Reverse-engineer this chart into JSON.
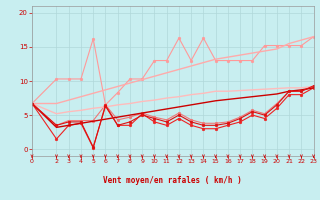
{
  "bg_color": "#c8eef0",
  "grid_color": "#b0d8da",
  "xlabel": "Vent moyen/en rafales ( km/h )",
  "xlabel_color": "#cc0000",
  "tick_color": "#cc0000",
  "xlim": [
    0,
    23
  ],
  "ylim": [
    -1,
    21
  ],
  "yticks": [
    0,
    5,
    10,
    15,
    20
  ],
  "xticks": [
    0,
    2,
    3,
    4,
    5,
    6,
    7,
    8,
    9,
    10,
    11,
    12,
    13,
    14,
    15,
    16,
    17,
    18,
    19,
    20,
    21,
    22,
    23
  ],
  "lines": [
    {
      "x": [
        0,
        2,
        3,
        4,
        5,
        6,
        7,
        8,
        9,
        10,
        11,
        12,
        13,
        14,
        15,
        16,
        17,
        18,
        19,
        20,
        21,
        22,
        23
      ],
      "y": [
        6.7,
        10.3,
        10.3,
        10.3,
        16.2,
        6.5,
        8.3,
        10.3,
        10.3,
        13.0,
        13.0,
        16.3,
        13.0,
        16.3,
        13.0,
        13.0,
        13.0,
        13.0,
        15.2,
        15.2,
        15.2,
        15.2,
        16.5
      ],
      "color": "#ff9999",
      "linewidth": 0.8,
      "marker": "o",
      "markersize": 2.0
    },
    {
      "x": [
        0,
        2,
        3,
        4,
        5,
        6,
        7,
        8,
        9,
        10,
        11,
        12,
        13,
        14,
        15,
        16,
        17,
        18,
        19,
        20,
        21,
        22,
        23
      ],
      "y": [
        6.7,
        6.7,
        7.2,
        7.7,
        8.2,
        8.7,
        9.2,
        9.7,
        10.2,
        10.7,
        11.2,
        11.7,
        12.2,
        12.7,
        13.2,
        13.5,
        13.8,
        14.1,
        14.4,
        14.7,
        15.5,
        16.0,
        16.5
      ],
      "color": "#ffaaaa",
      "linewidth": 1.0,
      "marker": null,
      "markersize": 0
    },
    {
      "x": [
        0,
        2,
        3,
        4,
        5,
        6,
        7,
        8,
        9,
        10,
        11,
        12,
        13,
        14,
        15,
        16,
        17,
        18,
        19,
        20,
        21,
        22,
        23
      ],
      "y": [
        6.7,
        3.5,
        4.2,
        4.2,
        4.2,
        6.5,
        4.3,
        4.7,
        5.3,
        4.7,
        4.3,
        5.3,
        4.3,
        3.8,
        3.8,
        4.0,
        4.7,
        5.7,
        5.2,
        6.7,
        8.5,
        8.5,
        9.2
      ],
      "color": "#ee7777",
      "linewidth": 0.8,
      "marker": "o",
      "markersize": 2.0
    },
    {
      "x": [
        0,
        2,
        3,
        4,
        5,
        6,
        7,
        8,
        9,
        10,
        11,
        12,
        13,
        14,
        15,
        16,
        17,
        18,
        19,
        20,
        21,
        22,
        23
      ],
      "y": [
        6.7,
        5.2,
        5.5,
        5.7,
        6.0,
        6.2,
        6.5,
        6.7,
        7.0,
        7.2,
        7.5,
        7.7,
        8.0,
        8.2,
        8.5,
        8.5,
        8.6,
        8.7,
        8.8,
        8.9,
        9.0,
        9.0,
        9.2
      ],
      "color": "#ffbbbb",
      "linewidth": 1.0,
      "marker": null,
      "markersize": 0
    },
    {
      "x": [
        0,
        2,
        3,
        4,
        5,
        6,
        7,
        8,
        9,
        10,
        11,
        12,
        13,
        14,
        15,
        16,
        17,
        18,
        19,
        20,
        21,
        22,
        23
      ],
      "y": [
        6.7,
        1.5,
        3.5,
        3.8,
        0.2,
        6.5,
        3.5,
        3.5,
        5.2,
        4.0,
        3.5,
        4.5,
        3.5,
        3.0,
        3.0,
        3.5,
        4.0,
        5.0,
        4.5,
        6.0,
        8.0,
        8.0,
        9.0
      ],
      "color": "#ee2222",
      "linewidth": 0.8,
      "marker": "o",
      "markersize": 2.0
    },
    {
      "x": [
        0,
        2,
        3,
        4,
        5,
        6,
        7,
        8,
        9,
        10,
        11,
        12,
        13,
        14,
        15,
        16,
        17,
        18,
        19,
        20,
        21,
        22,
        23
      ],
      "y": [
        6.7,
        3.2,
        3.5,
        3.8,
        4.1,
        4.4,
        4.7,
        5.0,
        5.3,
        5.6,
        5.9,
        6.2,
        6.5,
        6.8,
        7.1,
        7.3,
        7.5,
        7.7,
        7.9,
        8.1,
        8.5,
        8.7,
        9.0
      ],
      "color": "#cc0000",
      "linewidth": 1.0,
      "marker": null,
      "markersize": 0
    },
    {
      "x": [
        0,
        2,
        3,
        4,
        5,
        6,
        7,
        8,
        9,
        10,
        11,
        12,
        13,
        14,
        15,
        16,
        17,
        18,
        19,
        20,
        21,
        22,
        23
      ],
      "y": [
        6.7,
        3.5,
        4.0,
        4.0,
        0.3,
        6.3,
        3.5,
        4.0,
        5.0,
        4.5,
        4.0,
        5.0,
        4.0,
        3.5,
        3.5,
        3.8,
        4.5,
        5.5,
        5.0,
        6.5,
        8.5,
        8.5,
        9.3
      ],
      "color": "#dd1111",
      "linewidth": 0.8,
      "marker": "o",
      "markersize": 2.0
    }
  ],
  "wind_arrows_x": [
    0,
    2,
    3,
    4,
    5,
    6,
    7,
    8,
    9,
    10,
    11,
    12,
    13,
    14,
    15,
    16,
    17,
    18,
    19,
    20,
    21,
    22,
    23
  ],
  "wind_arrow_angles": [
    225,
    200,
    190,
    185,
    200,
    210,
    220,
    210,
    195,
    185,
    180,
    175,
    180,
    190,
    185,
    160,
    165,
    195,
    200,
    205,
    180,
    200,
    210
  ]
}
